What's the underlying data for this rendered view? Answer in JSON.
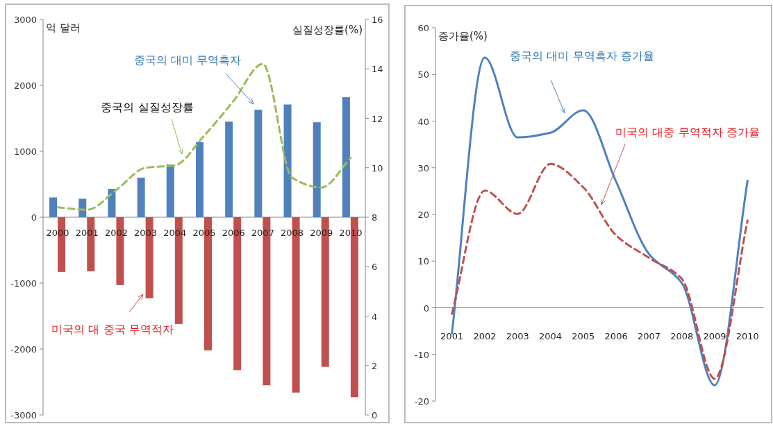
{
  "chart_data": [
    {
      "type": "bar",
      "categories": [
        "2000",
        "2001",
        "2002",
        "2003",
        "2004",
        "2005",
        "2006",
        "2007",
        "2008",
        "2009",
        "2010"
      ],
      "ylabel": "억 달러",
      "y2label": "실질성장률(%)",
      "ylim": [
        -3000,
        3000
      ],
      "yticks": [
        -3000,
        -2000,
        -1000,
        0,
        1000,
        2000,
        3000
      ],
      "y2lim": [
        0,
        16
      ],
      "y2ticks": [
        0,
        2,
        4,
        6,
        8,
        10,
        12,
        14,
        16
      ],
      "series": [
        {
          "name": "중국의 대미 무역흑자",
          "color": "#4f81bd",
          "values": [
            300,
            280,
            430,
            600,
            800,
            1140,
            1450,
            1630,
            1710,
            1440,
            1820
          ]
        },
        {
          "name": "미국의 대 중국 무역적자",
          "color": "#c0504d",
          "values": [
            -830,
            -820,
            -1030,
            -1230,
            -1620,
            -2020,
            -2320,
            -2550,
            -2660,
            -2270,
            -2730
          ]
        },
        {
          "name": "중국의 실질성장률",
          "type": "line",
          "axis": "y2",
          "line_style": "dashed",
          "color": "#9bbb59",
          "values": [
            8.4,
            8.3,
            9.1,
            10.0,
            10.1,
            11.3,
            12.7,
            14.2,
            9.6,
            9.2,
            10.4
          ]
        }
      ]
    },
    {
      "type": "line",
      "categories": [
        "2001",
        "2002",
        "2003",
        "2004",
        "2005",
        "2006",
        "2007",
        "2008",
        "2009",
        "2010"
      ],
      "ylabel": "증가율(%)",
      "ylim": [
        -20,
        60
      ],
      "yticks": [
        -20,
        -10,
        0,
        10,
        20,
        30,
        40,
        50,
        60
      ],
      "series": [
        {
          "name": "중국의 대미 무역흑자 증가율",
          "color": "#4f81bd",
          "line_style": "solid",
          "values": [
            -5.5,
            53.6,
            36.5,
            37.5,
            42.3,
            27.0,
            11.5,
            5.3,
            -16.6,
            27.2
          ]
        },
        {
          "name": "미국의 대중 무역적자 증가율",
          "color": "#c0504d",
          "line_style": "dashed",
          "values": [
            -1.3,
            25.1,
            20.1,
            30.8,
            25.8,
            15.5,
            10.7,
            6.2,
            -15.2,
            18.7
          ]
        }
      ]
    }
  ]
}
